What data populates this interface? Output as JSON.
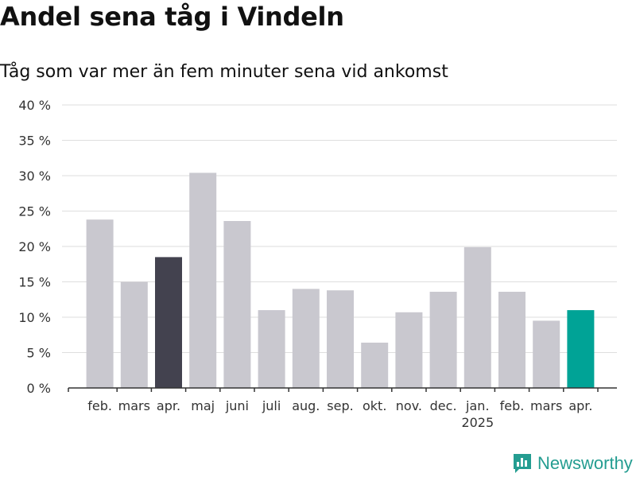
{
  "title": "Andel sena tåg i Vindeln",
  "subtitle": "Tåg som var mer än fem minuter sena vid ankomst",
  "brand": "Newsworthy",
  "colors": {
    "bar_default": "#c9c8cf",
    "bar_highlight_previous": "#43424f",
    "bar_highlight_latest": "#00a396",
    "grid": "#dedede",
    "axis": "#333333",
    "brand": "#249d91"
  },
  "chart_data": {
    "type": "bar",
    "categories": [
      "feb.",
      "mars",
      "apr.",
      "maj",
      "juni",
      "juli",
      "aug.",
      "sep.",
      "okt.",
      "nov.",
      "dec.",
      "jan.",
      "feb.",
      "mars",
      "apr."
    ],
    "year_label": {
      "category_index": 11,
      "text": "2025"
    },
    "values": [
      23.8,
      15.0,
      18.5,
      30.4,
      23.6,
      11.0,
      14.0,
      13.8,
      6.4,
      10.7,
      13.6,
      19.9,
      13.6,
      9.5,
      11.0
    ],
    "bar_colors": [
      "#c9c8cf",
      "#c9c8cf",
      "#43424f",
      "#c9c8cf",
      "#c9c8cf",
      "#c9c8cf",
      "#c9c8cf",
      "#c9c8cf",
      "#c9c8cf",
      "#c9c8cf",
      "#c9c8cf",
      "#c9c8cf",
      "#c9c8cf",
      "#c9c8cf",
      "#00a396"
    ],
    "ylim": [
      0,
      40
    ],
    "yticks": [
      0,
      5,
      10,
      15,
      20,
      25,
      30,
      35,
      40
    ],
    "ytick_labels": [
      "0 %",
      "5 %",
      "10 %",
      "15 %",
      "20 %",
      "25 %",
      "30 %",
      "35 %",
      "40 %"
    ],
    "grid": true,
    "legend": "none"
  }
}
